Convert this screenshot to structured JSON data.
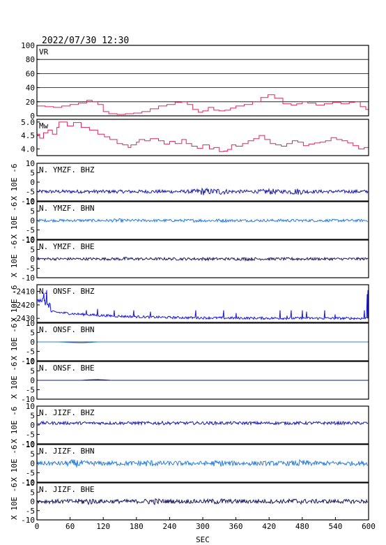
{
  "header": {
    "timestamp": "2022/07/30 12:30"
  },
  "chart_data": {
    "type": "line",
    "xlabel": "SEC",
    "xlim": [
      0,
      600
    ],
    "xticks": [
      "0",
      "60",
      "120",
      "180",
      "240",
      "300",
      "360",
      "420",
      "480",
      "540",
      "600"
    ],
    "panels": [
      {
        "label": "VR",
        "ylabel": "",
        "ylim": [
          0,
          100
        ],
        "yticks": [
          0,
          20,
          40,
          60,
          80,
          100
        ],
        "hgrid": [
          20,
          40,
          60,
          80
        ],
        "zero_line": false,
        "color": "#e0245e",
        "kind": "step",
        "points": [
          [
            0,
            14
          ],
          [
            15,
            13
          ],
          [
            30,
            12
          ],
          [
            45,
            14
          ],
          [
            60,
            16
          ],
          [
            75,
            18
          ],
          [
            90,
            22
          ],
          [
            100,
            20
          ],
          [
            110,
            16
          ],
          [
            120,
            6
          ],
          [
            130,
            3
          ],
          [
            145,
            2
          ],
          [
            160,
            3
          ],
          [
            175,
            4
          ],
          [
            190,
            6
          ],
          [
            205,
            10
          ],
          [
            220,
            14
          ],
          [
            235,
            16
          ],
          [
            250,
            19
          ],
          [
            262,
            20
          ],
          [
            272,
            16
          ],
          [
            282,
            9
          ],
          [
            292,
            5
          ],
          [
            300,
            7
          ],
          [
            310,
            12
          ],
          [
            320,
            8
          ],
          [
            330,
            7
          ],
          [
            340,
            8
          ],
          [
            350,
            11
          ],
          [
            360,
            14
          ],
          [
            375,
            16
          ],
          [
            390,
            20
          ],
          [
            405,
            26
          ],
          [
            418,
            30
          ],
          [
            430,
            25
          ],
          [
            445,
            17
          ],
          [
            460,
            15
          ],
          [
            470,
            17
          ],
          [
            480,
            20
          ],
          [
            490,
            18
          ],
          [
            505,
            15
          ],
          [
            520,
            17
          ],
          [
            535,
            19
          ],
          [
            550,
            17
          ],
          [
            565,
            19
          ],
          [
            575,
            20
          ],
          [
            585,
            13
          ],
          [
            595,
            9
          ],
          [
            600,
            10
          ]
        ]
      },
      {
        "label": "Mw",
        "ylabel": "",
        "ylim": [
          3.75,
          5.1
        ],
        "yticks": [
          4.0,
          4.5,
          5.0
        ],
        "hgrid": [],
        "zero_line": false,
        "color": "#e0245e",
        "kind": "step",
        "points": [
          [
            0,
            4.55
          ],
          [
            5,
            4.4
          ],
          [
            12,
            4.6
          ],
          [
            20,
            4.7
          ],
          [
            28,
            4.55
          ],
          [
            36,
            4.8
          ],
          [
            40,
            5.0
          ],
          [
            55,
            4.85
          ],
          [
            66,
            4.98
          ],
          [
            80,
            4.8
          ],
          [
            95,
            4.7
          ],
          [
            110,
            4.55
          ],
          [
            122,
            4.45
          ],
          [
            132,
            4.35
          ],
          [
            145,
            4.2
          ],
          [
            155,
            4.15
          ],
          [
            165,
            4.05
          ],
          [
            170,
            4.15
          ],
          [
            180,
            4.25
          ],
          [
            185,
            4.35
          ],
          [
            195,
            4.3
          ],
          [
            205,
            4.38
          ],
          [
            220,
            4.3
          ],
          [
            230,
            4.18
          ],
          [
            240,
            4.28
          ],
          [
            250,
            4.2
          ],
          [
            262,
            4.35
          ],
          [
            270,
            4.2
          ],
          [
            280,
            4.1
          ],
          [
            290,
            4.02
          ],
          [
            300,
            4.15
          ],
          [
            312,
            4.0
          ],
          [
            320,
            4.05
          ],
          [
            330,
            3.9
          ],
          [
            338,
            3.92
          ],
          [
            345,
            3.98
          ],
          [
            352,
            4.15
          ],
          [
            360,
            4.1
          ],
          [
            372,
            4.2
          ],
          [
            382,
            4.3
          ],
          [
            392,
            4.38
          ],
          [
            402,
            4.5
          ],
          [
            412,
            4.35
          ],
          [
            422,
            4.2
          ],
          [
            432,
            4.15
          ],
          [
            442,
            4.1
          ],
          [
            452,
            4.2
          ],
          [
            462,
            4.3
          ],
          [
            472,
            4.25
          ],
          [
            482,
            4.12
          ],
          [
            492,
            4.18
          ],
          [
            502,
            4.22
          ],
          [
            512,
            4.25
          ],
          [
            522,
            4.3
          ],
          [
            532,
            4.42
          ],
          [
            542,
            4.35
          ],
          [
            552,
            4.3
          ],
          [
            562,
            4.22
          ],
          [
            572,
            4.12
          ],
          [
            582,
            4.0
          ],
          [
            592,
            4.05
          ],
          [
            600,
            4.0
          ]
        ]
      },
      {
        "label": "N. YMZF. BHZ",
        "ylabel": "X 10E -6",
        "ylim": [
          -10,
          10
        ],
        "yticks": [
          -10,
          -5,
          0,
          5,
          10
        ],
        "hgrid": [],
        "zero_line": false,
        "color": "#1a1aa8",
        "kind": "noise",
        "baseline": -5,
        "amp": 0.9,
        "events": [
          [
            300,
            2.2
          ],
          [
            330,
            2.0
          ],
          [
            420,
            1.8
          ],
          [
            470,
            2.0
          ]
        ]
      },
      {
        "label": "N. YMZF. BHN",
        "ylabel": "X 10E -6",
        "ylim": [
          -10,
          10
        ],
        "yticks": [
          -10,
          -5,
          0,
          5,
          10
        ],
        "hgrid": [],
        "zero_line": false,
        "color": "#2a7fdd",
        "kind": "noise",
        "baseline": 0,
        "amp": 0.7,
        "events": [
          [
            150,
            1.4
          ],
          [
            290,
            1.2
          ],
          [
            330,
            1.3
          ],
          [
            450,
            1.2
          ]
        ]
      },
      {
        "label": "N. YMZF. BHE",
        "ylabel": "X 10E -6",
        "ylim": [
          -10,
          10
        ],
        "yticks": [
          -10,
          -5,
          0,
          5,
          10
        ],
        "hgrid": [],
        "zero_line": false,
        "color": "#1a1a5e",
        "kind": "noise",
        "baseline": 0,
        "amp": 0.7,
        "events": [
          [
            160,
            1.4
          ],
          [
            300,
            1.2
          ],
          [
            380,
            1.3
          ],
          [
            470,
            1.2
          ]
        ]
      },
      {
        "label": "N. ONSF. BHZ",
        "ylabel": "X 10E -6",
        "ylim": [
          -2433,
          -2405
        ],
        "yticks": [
          -2430,
          -2420,
          -2410
        ],
        "hgrid": [],
        "zero_line": false,
        "color": "#1414e6",
        "kind": "spiky",
        "start": -2414,
        "baseline": -2430,
        "amp": 0.6,
        "spikes": [
          [
            12,
            -2411
          ],
          [
            18,
            -2409
          ],
          [
            90,
            -2424
          ],
          [
            110,
            -2423
          ],
          [
            140,
            -2424
          ],
          [
            175,
            -2424
          ],
          [
            205,
            -2425
          ],
          [
            288,
            -2424
          ],
          [
            338,
            -2424
          ],
          [
            360,
            -2426
          ],
          [
            440,
            -2424
          ],
          [
            452,
            -2428
          ],
          [
            460,
            -2424
          ],
          [
            480,
            -2424
          ],
          [
            488,
            -2425
          ],
          [
            520,
            -2424
          ],
          [
            540,
            -2427
          ],
          [
            592,
            -2424
          ],
          [
            597,
            -2412
          ],
          [
            599,
            -2409
          ]
        ]
      },
      {
        "label": "N. ONSF. BHN",
        "ylabel": "X 10E -6",
        "ylim": [
          -10,
          10
        ],
        "yticks": [
          -10,
          -5,
          0,
          5,
          10
        ],
        "hgrid": [],
        "zero_line": true,
        "color": "#2a7fdd",
        "kind": "flat",
        "baseline": 0,
        "bump": [
          [
            40,
            0
          ],
          [
            60,
            -0.3
          ],
          [
            80,
            -0.5
          ],
          [
            95,
            -0.3
          ],
          [
            110,
            0
          ]
        ]
      },
      {
        "label": "N. ONSF. BHE",
        "ylabel": "X 10E -6",
        "ylim": [
          -10,
          10
        ],
        "yticks": [
          -10,
          -5,
          0,
          5,
          10
        ],
        "hgrid": [],
        "zero_line": true,
        "color": "#1a1a5e",
        "kind": "flat",
        "baseline": 0,
        "bump": [
          [
            80,
            0
          ],
          [
            95,
            0.3
          ],
          [
            110,
            0.4
          ],
          [
            125,
            0.2
          ],
          [
            135,
            0
          ]
        ]
      },
      {
        "label": "N. JIZF. BHZ",
        "ylabel": "X 10E -6",
        "ylim": [
          -10,
          10
        ],
        "yticks": [
          -10,
          -5,
          0,
          5,
          10
        ],
        "hgrid": [],
        "zero_line": false,
        "color": "#1a1aa8",
        "kind": "noise",
        "baseline": 1,
        "amp": 0.8,
        "events": [
          [
            220,
            1.2
          ],
          [
            320,
            1.1
          ]
        ]
      },
      {
        "label": "N. JIZF. BHN",
        "ylabel": "X 10E -6",
        "ylim": [
          -10,
          10
        ],
        "yticks": [
          -10,
          -5,
          0,
          5,
          10
        ],
        "hgrid": [],
        "zero_line": false,
        "color": "#2a7fdd",
        "kind": "noise",
        "baseline": 0,
        "amp": 1.2,
        "events": [
          [
            70,
            1.8
          ],
          [
            200,
            1.6
          ],
          [
            330,
            1.5
          ],
          [
            480,
            1.6
          ]
        ]
      },
      {
        "label": "N. JIZF. BHE",
        "ylabel": "X 10E -6",
        "ylim": [
          -10,
          10
        ],
        "yticks": [
          -10,
          -5,
          0,
          5,
          10
        ],
        "hgrid": [],
        "zero_line": false,
        "color": "#1a1a5e",
        "kind": "noise",
        "baseline": 0,
        "amp": 1.1,
        "events": [
          [
            90,
            1.7
          ],
          [
            210,
            1.6
          ],
          [
            330,
            1.5
          ],
          [
            470,
            1.5
          ]
        ]
      }
    ]
  }
}
